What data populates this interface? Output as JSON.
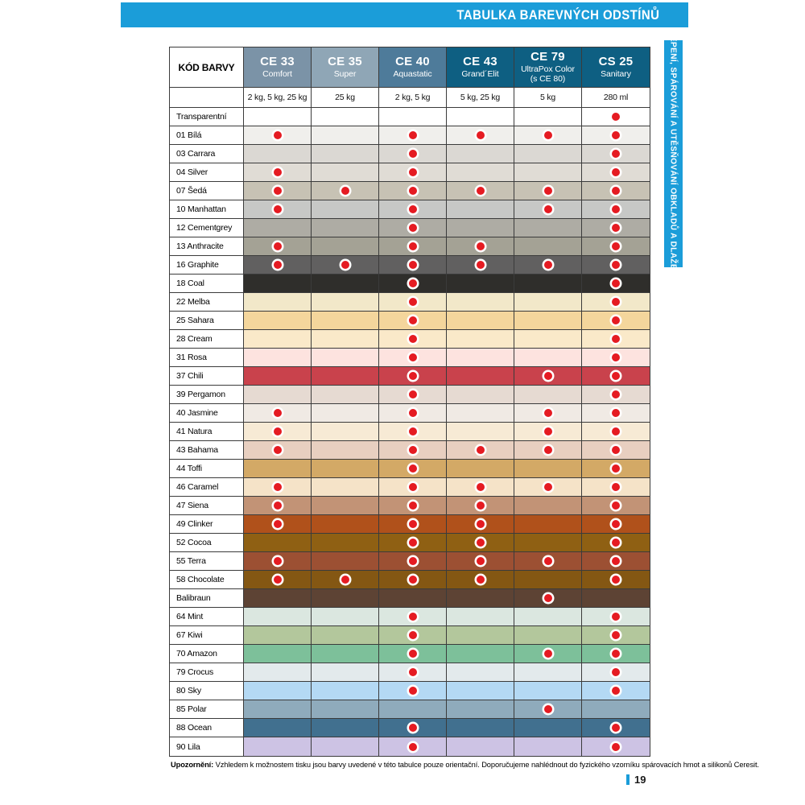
{
  "page": {
    "title": "TABULKA BAREVNÝCH ODSTÍNŮ",
    "side_tab": "LEPENÍ, SPÁROVÁNÍ A UTĚSŇOVÁNÍ OBKLADŮ A DLAŽBY",
    "page_number": "19",
    "note_label": "Upozornění:",
    "note_text": " Vzhledem k možnostem tisku jsou barvy uvedené v této tabulce pouze orientační. Doporučujeme nahlédnout do fyzického vzorníku spárovacích hmot a silikonů Ceresit.",
    "accent_blue": "#1b9dd9",
    "dot_red": "#e51b22",
    "border_dark": "#3b3b3b"
  },
  "table": {
    "code_header": "KÓD BARVY",
    "products": [
      {
        "code": "CE 33",
        "name": "Comfort",
        "name2": "",
        "packaging": "2 kg, 5 kg, 25 kg",
        "header_color": "#7b93a7"
      },
      {
        "code": "CE 35",
        "name": "Super",
        "name2": "",
        "packaging": "25 kg",
        "header_color": "#8fa6b6"
      },
      {
        "code": "CE 40",
        "name": "Aquastatic",
        "name2": "",
        "packaging": "2 kg, 5 kg",
        "header_color": "#4e7b9a"
      },
      {
        "code": "CE 43",
        "name": "Grand´Elit",
        "name2": "",
        "packaging": "5 kg, 25 kg",
        "header_color": "#0e5f82"
      },
      {
        "code": "CE 79",
        "name": "UltraPox Color",
        "name2": "(s CE 80)",
        "packaging": "5 kg",
        "header_color": "#0e5f82"
      },
      {
        "code": "CS 25",
        "name": "Sanitary",
        "name2": "",
        "packaging": "280 ml",
        "header_color": "#0e5f82"
      }
    ],
    "dot_columns": [
      "CE 33",
      "CE 35",
      "CE 40",
      "CE 43",
      "CE 79",
      "CS 25"
    ],
    "rows": [
      {
        "label": "Transparentní",
        "color": "#ffffff",
        "dots": [
          0,
          0,
          0,
          0,
          0,
          1
        ]
      },
      {
        "label": "01 Bílá",
        "color": "#f0efec",
        "dots": [
          1,
          0,
          1,
          1,
          1,
          1
        ]
      },
      {
        "label": "03 Carrara",
        "color": "#dbd8d3",
        "dots": [
          0,
          0,
          1,
          0,
          0,
          1
        ]
      },
      {
        "label": "04 Silver",
        "color": "#e0dcd5",
        "dots": [
          1,
          0,
          1,
          0,
          0,
          1
        ]
      },
      {
        "label": "07 Šedá",
        "color": "#c7c2b4",
        "dots": [
          1,
          1,
          1,
          1,
          1,
          1
        ]
      },
      {
        "label": "10 Manhattan",
        "color": "#c7c8c6",
        "dots": [
          1,
          0,
          1,
          0,
          1,
          1
        ]
      },
      {
        "label": "12 Cementgrey",
        "color": "#aeaca4",
        "dots": [
          0,
          0,
          1,
          0,
          0,
          1
        ]
      },
      {
        "label": "13 Anthracite",
        "color": "#a4a295",
        "dots": [
          1,
          0,
          1,
          1,
          0,
          1
        ]
      },
      {
        "label": "16 Graphite",
        "color": "#616060",
        "dots": [
          1,
          1,
          1,
          1,
          1,
          1
        ]
      },
      {
        "label": "18 Coal",
        "color": "#2f2e2b",
        "dots": [
          0,
          0,
          1,
          0,
          0,
          1
        ]
      },
      {
        "label": "22 Melba",
        "color": "#f2e8c9",
        "dots": [
          0,
          0,
          1,
          0,
          0,
          1
        ]
      },
      {
        "label": "25 Sahara",
        "color": "#f4d69c",
        "dots": [
          0,
          0,
          1,
          0,
          0,
          1
        ]
      },
      {
        "label": "28 Cream",
        "color": "#fae9c9",
        "dots": [
          0,
          0,
          1,
          0,
          0,
          1
        ]
      },
      {
        "label": "31 Rosa",
        "color": "#fde3df",
        "dots": [
          0,
          0,
          1,
          0,
          0,
          1
        ]
      },
      {
        "label": "37 Chili",
        "color": "#c9424c",
        "dots": [
          0,
          0,
          1,
          0,
          1,
          1
        ]
      },
      {
        "label": "39 Pergamon",
        "color": "#e6dad2",
        "dots": [
          0,
          0,
          1,
          0,
          0,
          1
        ]
      },
      {
        "label": "40 Jasmine",
        "color": "#f0eae4",
        "dots": [
          1,
          0,
          1,
          0,
          1,
          1
        ]
      },
      {
        "label": "41 Natura",
        "color": "#f7ead5",
        "dots": [
          1,
          0,
          1,
          0,
          1,
          1
        ]
      },
      {
        "label": "43 Bahama",
        "color": "#e8cfc0",
        "dots": [
          1,
          0,
          1,
          1,
          1,
          1
        ]
      },
      {
        "label": "44 Toffi",
        "color": "#d3a966",
        "dots": [
          0,
          0,
          1,
          0,
          0,
          1
        ]
      },
      {
        "label": "46 Caramel",
        "color": "#f5e3c8",
        "dots": [
          1,
          0,
          1,
          1,
          1,
          1
        ]
      },
      {
        "label": "47 Siena",
        "color": "#c29376",
        "dots": [
          1,
          0,
          1,
          1,
          0,
          1
        ]
      },
      {
        "label": "49 Clinker",
        "color": "#b0511b",
        "dots": [
          1,
          0,
          1,
          1,
          0,
          1
        ]
      },
      {
        "label": "52 Cocoa",
        "color": "#8f6013",
        "dots": [
          0,
          0,
          1,
          1,
          0,
          1
        ]
      },
      {
        "label": "55 Terra",
        "color": "#9c5033",
        "dots": [
          1,
          0,
          1,
          1,
          1,
          1
        ]
      },
      {
        "label": "58 Chocolate",
        "color": "#845713",
        "dots": [
          1,
          1,
          1,
          1,
          0,
          1
        ]
      },
      {
        "label": "Balibraun",
        "color": "#5d4334",
        "dots": [
          0,
          0,
          0,
          0,
          1,
          0
        ]
      },
      {
        "label": "64 Mint",
        "color": "#dbe7e0",
        "dots": [
          0,
          0,
          1,
          0,
          0,
          1
        ]
      },
      {
        "label": "67 Kiwi",
        "color": "#b3c79c",
        "dots": [
          0,
          0,
          1,
          0,
          0,
          1
        ]
      },
      {
        "label": "70 Amazon",
        "color": "#7dc09a",
        "dots": [
          0,
          0,
          1,
          0,
          1,
          1
        ]
      },
      {
        "label": "79 Crocus",
        "color": "#e3eaec",
        "dots": [
          0,
          0,
          1,
          0,
          0,
          1
        ]
      },
      {
        "label": "80 Sky",
        "color": "#b4d9f4",
        "dots": [
          0,
          0,
          1,
          0,
          0,
          1
        ]
      },
      {
        "label": "85 Polar",
        "color": "#8fabbc",
        "dots": [
          0,
          0,
          0,
          0,
          1,
          0
        ]
      },
      {
        "label": "88 Ocean",
        "color": "#41708f",
        "dots": [
          0,
          0,
          1,
          0,
          0,
          1
        ]
      },
      {
        "label": "90 Lila",
        "color": "#cdc3e4",
        "dots": [
          0,
          0,
          1,
          0,
          0,
          1
        ]
      }
    ]
  }
}
